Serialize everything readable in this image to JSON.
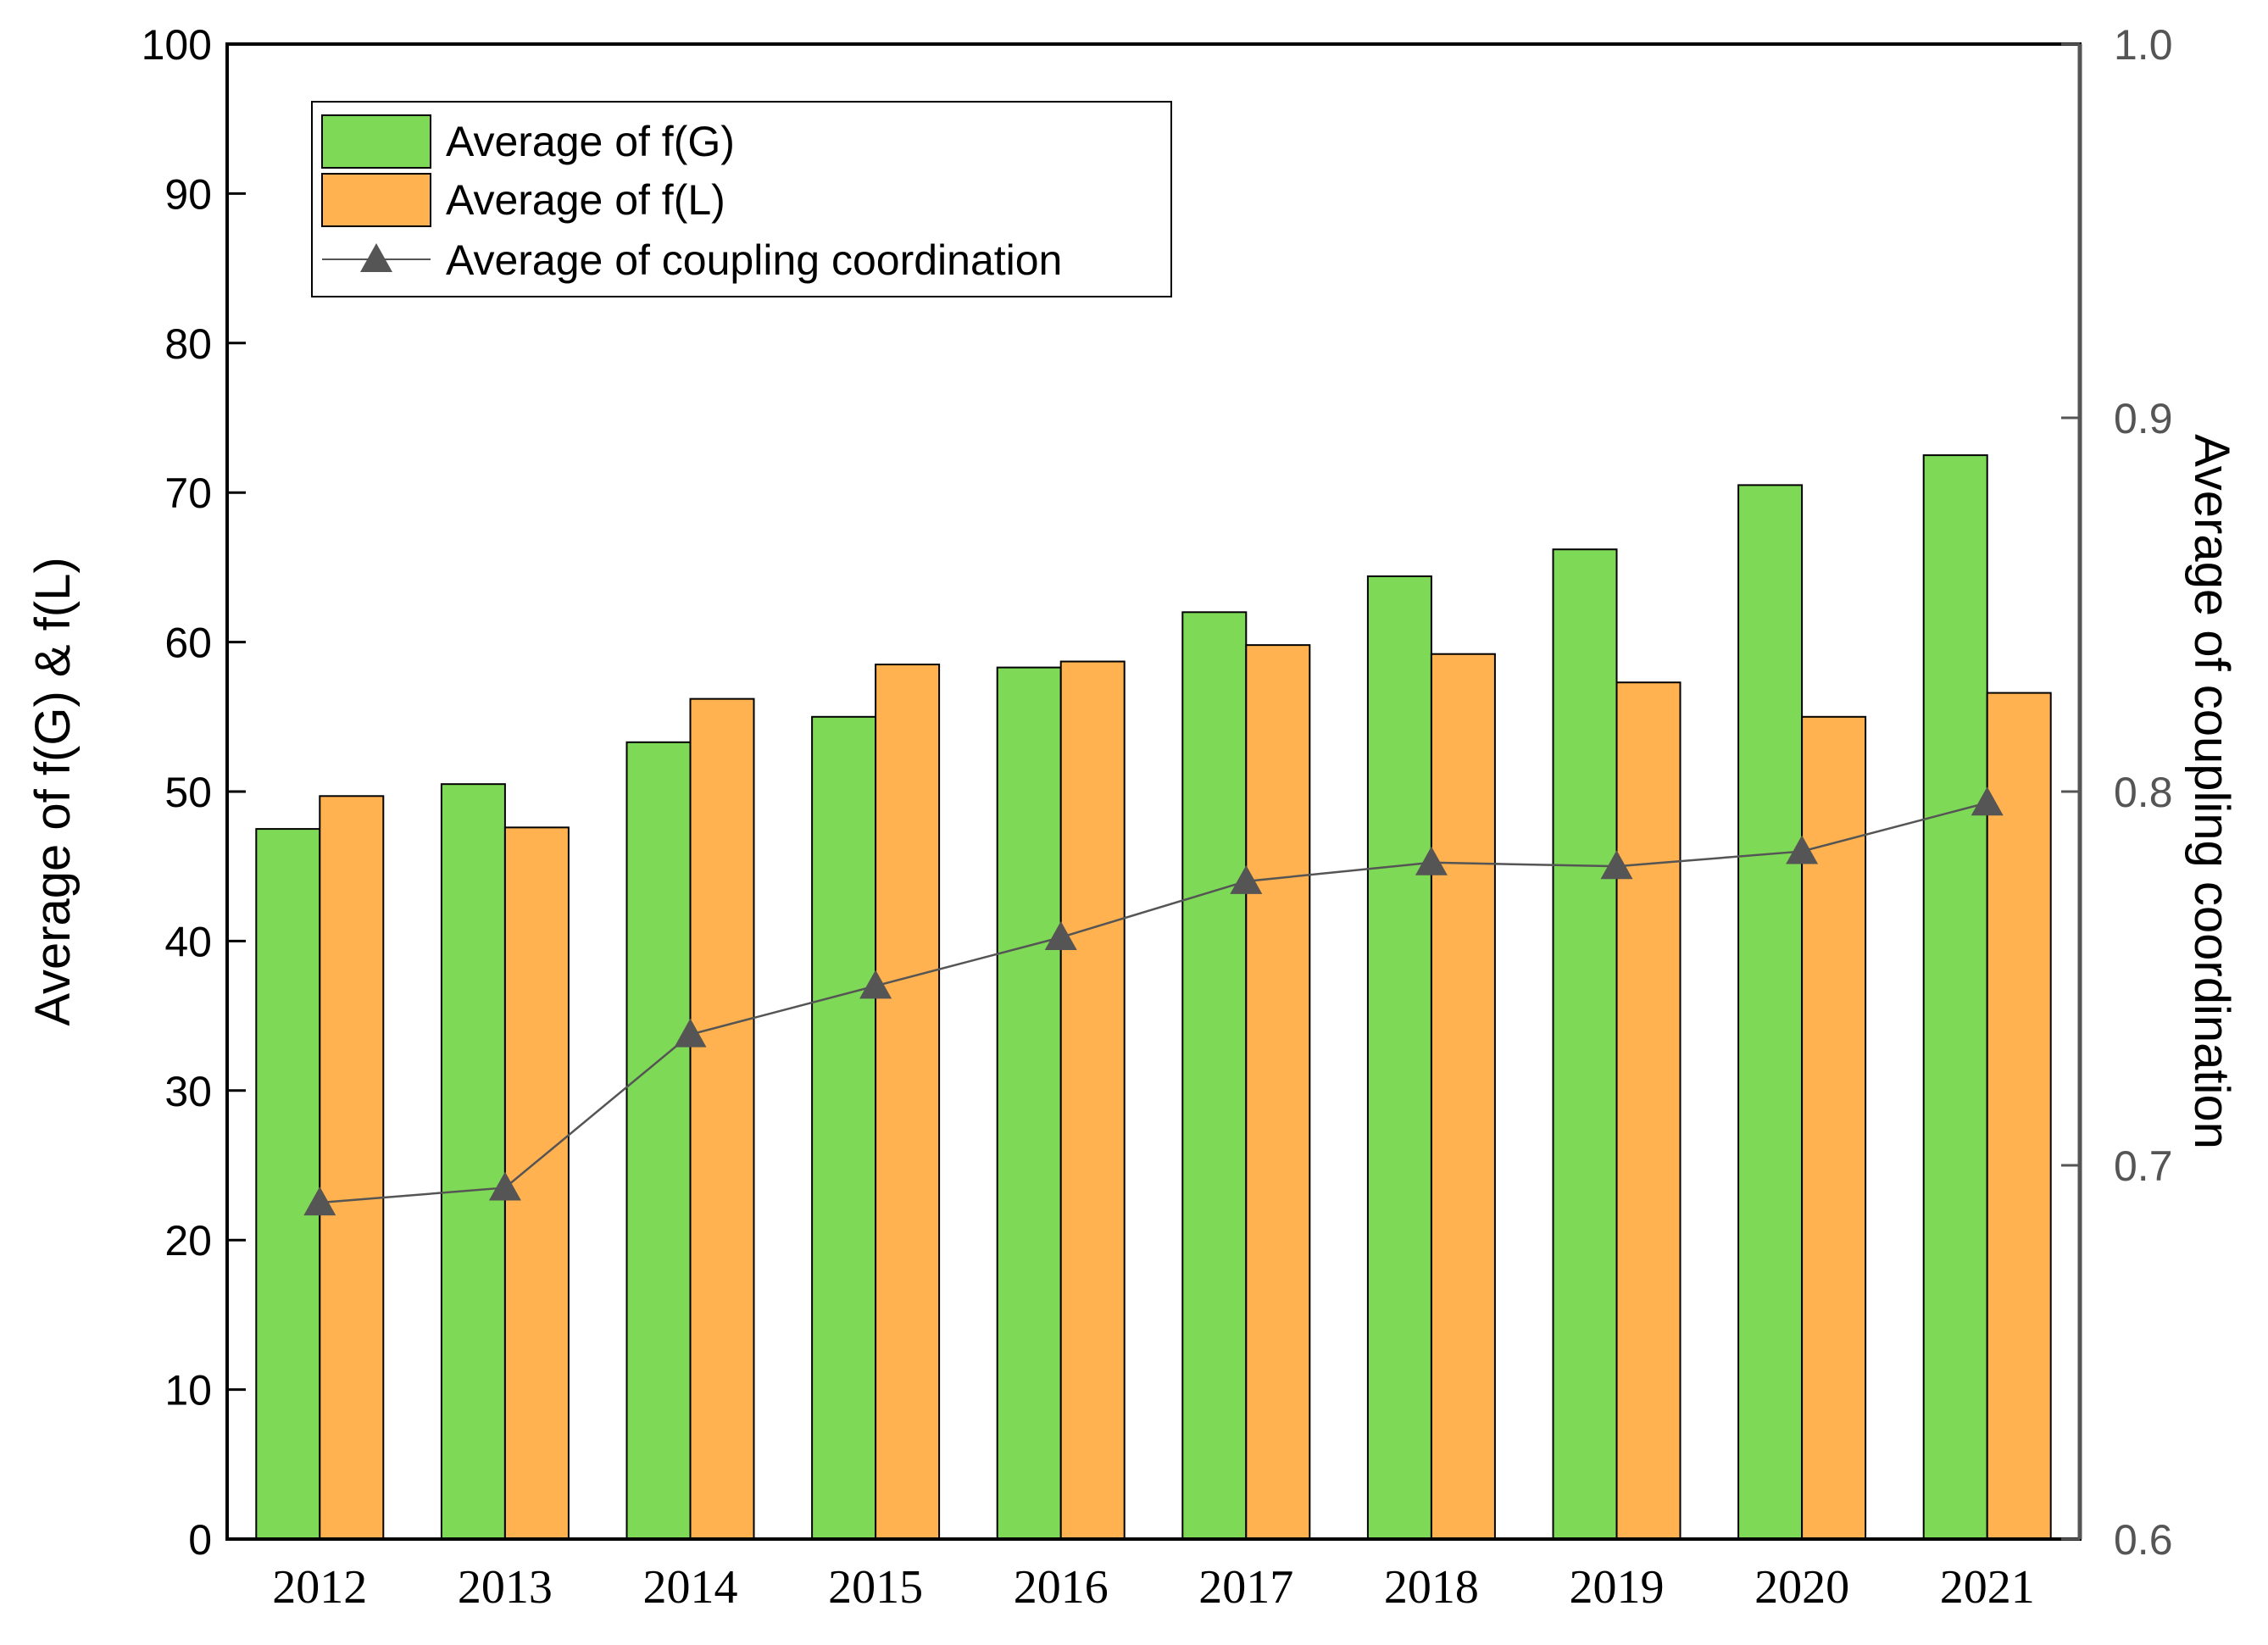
{
  "chart_data": {
    "type": "bar",
    "title": "",
    "categories": [
      "2012",
      "2013",
      "2014",
      "2015",
      "2016",
      "2017",
      "2018",
      "2019",
      "2020",
      "2021"
    ],
    "series": [
      {
        "name": "Average of f(G)",
        "axis": "left",
        "color": "#7ed957",
        "values": [
          47.5,
          50.5,
          53.3,
          55.0,
          58.3,
          62.0,
          64.4,
          66.2,
          70.5,
          72.5
        ]
      },
      {
        "name": "Average of f(L)",
        "axis": "left",
        "color": "#ffb24f",
        "values": [
          49.7,
          47.6,
          56.2,
          58.5,
          58.7,
          59.8,
          59.2,
          57.3,
          55.0,
          56.6
        ]
      }
    ],
    "line_series": [
      {
        "name": "Average of coupling coordination",
        "axis": "right",
        "type": "line",
        "marker": "triangle",
        "color": "#555555",
        "values": [
          0.69,
          0.694,
          0.735,
          0.748,
          0.761,
          0.776,
          0.781,
          0.78,
          0.784,
          0.797
        ]
      }
    ],
    "ylabel": "Average of f(G) & f(L)",
    "y2label": "Average of coupling coordination",
    "xlabel": "",
    "ylim": [
      0,
      100
    ],
    "y2lim": [
      0.6,
      1.0
    ],
    "yticks": [
      "0",
      "10",
      "20",
      "30",
      "40",
      "50",
      "60",
      "70",
      "80",
      "90",
      "100"
    ],
    "y2ticks": [
      "0.6",
      "0.7",
      "0.8",
      "0.9",
      "1.0"
    ],
    "legend_position": "top-left",
    "grid": false
  }
}
